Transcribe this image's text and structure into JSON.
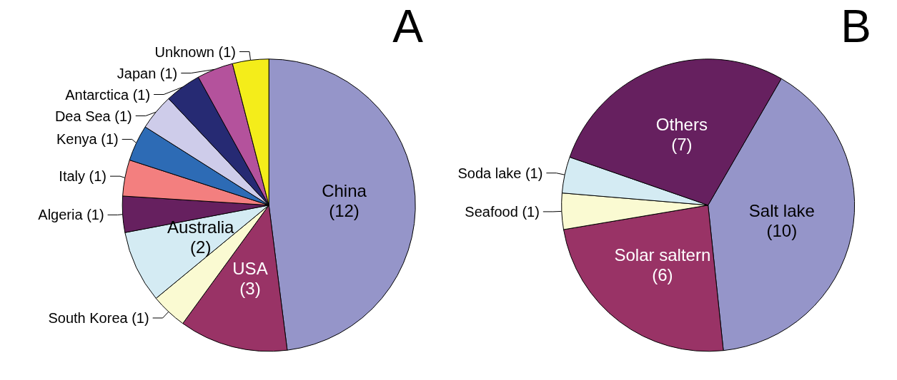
{
  "chart_data": [
    {
      "type": "pie",
      "title": "A",
      "categories": [
        "China",
        "USA",
        "South Korea",
        "Australia",
        "Algeria",
        "Italy",
        "Kenya",
        "Dea Sea",
        "Antarctica",
        "Japan",
        "Unknown"
      ],
      "values": [
        12,
        3,
        1,
        2,
        1,
        1,
        1,
        1,
        1,
        1,
        1
      ],
      "value_labels": [
        "(12)",
        "(3)",
        "(1)",
        "(2)",
        "(1)",
        "(1)",
        "(1)",
        "(1)",
        "(1)",
        "(1)",
        "(1)"
      ],
      "colors": [
        "#9595c9",
        "#993366",
        "#fafad2",
        "#d4ebf3",
        "#66205f",
        "#f37f7f",
        "#2d6bb5",
        "#ceccea",
        "#262a73",
        "#b4529c",
        "#f4ed1a"
      ],
      "legend": false
    },
    {
      "type": "pie",
      "title": "B",
      "categories": [
        "Salt lake",
        "Solar saltern",
        "Seafood",
        "Soda lake",
        "Others"
      ],
      "values": [
        10,
        6,
        1,
        1,
        7
      ],
      "value_labels": [
        "(10)",
        "(6)",
        "(1)",
        "(1)",
        "(7)"
      ],
      "colors": [
        "#9595c9",
        "#993366",
        "#fafad2",
        "#d4ebf3",
        "#66205f"
      ],
      "legend": false
    }
  ]
}
